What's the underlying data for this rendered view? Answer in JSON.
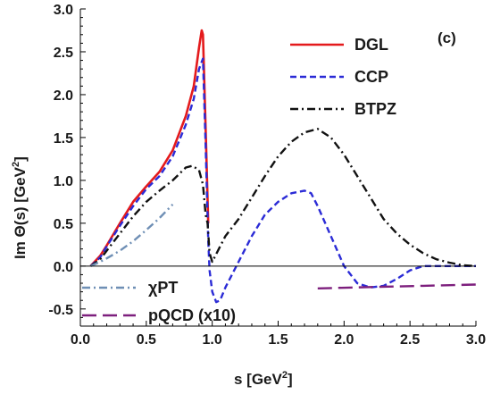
{
  "chart_data": {
    "type": "line",
    "panel_label": "(c)",
    "xlabel": "s  [GeV",
    "xlabel_sup": "2",
    "xlabel_end": "]",
    "ylabel": "Im Θ(s)   [GeV",
    "ylabel_sup": "2",
    "ylabel_end": "]",
    "xlim": [
      0.0,
      3.0
    ],
    "ylim": [
      -0.7,
      3.0
    ],
    "xticks": [
      0.0,
      0.5,
      1.0,
      1.5,
      2.0,
      2.5,
      3.0
    ],
    "xtick_labels": [
      "0.0",
      "0.5",
      "1.0",
      "1.5",
      "2.0",
      "2.5",
      "3.0"
    ],
    "yticks": [
      -0.5,
      0.0,
      0.5,
      1.0,
      1.5,
      2.0,
      2.5,
      3.0
    ],
    "ytick_labels": [
      "-0.5",
      "0.0",
      "0.5",
      "1.0",
      "1.5",
      "2.0",
      "2.5",
      "3.0"
    ],
    "zero_line": true,
    "series": [
      {
        "name": "DGL",
        "color": "#e41a1c",
        "dash": "solid",
        "x": [
          0.078,
          0.15,
          0.2,
          0.3,
          0.4,
          0.5,
          0.6,
          0.7,
          0.8,
          0.86,
          0.9,
          0.92,
          0.93,
          0.95,
          0.97
        ],
        "y": [
          0.0,
          0.12,
          0.24,
          0.5,
          0.75,
          0.93,
          1.1,
          1.35,
          1.75,
          2.1,
          2.55,
          2.75,
          2.7,
          1.6,
          0.5
        ]
      },
      {
        "name": "CCP",
        "color": "#2b2bd6",
        "dash": "dashed",
        "x": [
          0.078,
          0.15,
          0.2,
          0.3,
          0.4,
          0.5,
          0.6,
          0.7,
          0.8,
          0.86,
          0.9,
          0.93,
          0.95,
          0.97,
          0.98,
          1.0,
          1.03,
          1.06,
          1.1,
          1.2,
          1.3,
          1.4,
          1.5,
          1.6,
          1.7,
          1.75,
          1.8,
          1.9,
          2.0,
          2.1,
          2.2,
          2.3,
          2.4,
          2.5,
          2.6,
          2.7,
          2.8,
          2.9,
          3.0
        ],
        "y": [
          0.0,
          0.1,
          0.23,
          0.47,
          0.7,
          0.9,
          1.05,
          1.28,
          1.65,
          1.95,
          2.3,
          2.42,
          1.4,
          0.3,
          -0.05,
          -0.3,
          -0.42,
          -0.4,
          -0.25,
          0.05,
          0.35,
          0.6,
          0.75,
          0.85,
          0.88,
          0.85,
          0.7,
          0.35,
          0.0,
          -0.2,
          -0.25,
          -0.23,
          -0.15,
          -0.05,
          0.0,
          0.0,
          0.0,
          0.0,
          0.0
        ]
      },
      {
        "name": "BTPZ",
        "color": "#111111",
        "dash": "dashdot",
        "x": [
          0.078,
          0.15,
          0.2,
          0.3,
          0.4,
          0.5,
          0.6,
          0.7,
          0.8,
          0.85,
          0.9,
          0.93,
          0.95,
          0.965,
          0.98,
          1.0,
          1.05,
          1.1,
          1.2,
          1.3,
          1.4,
          1.5,
          1.6,
          1.7,
          1.8,
          1.9,
          2.0,
          2.1,
          2.2,
          2.3,
          2.4,
          2.5,
          2.6,
          2.7,
          2.8,
          2.9,
          3.0
        ],
        "y": [
          0.0,
          0.08,
          0.18,
          0.38,
          0.58,
          0.75,
          0.88,
          1.0,
          1.15,
          1.17,
          1.12,
          0.95,
          0.6,
          0.5,
          0.15,
          0.05,
          0.2,
          0.35,
          0.55,
          0.8,
          1.05,
          1.28,
          1.45,
          1.56,
          1.6,
          1.5,
          1.3,
          1.05,
          0.8,
          0.55,
          0.38,
          0.25,
          0.15,
          0.08,
          0.04,
          0.01,
          0.0
        ]
      },
      {
        "name": "χPT",
        "color": "#6f8fb5",
        "dash": "dashdot",
        "x": [
          0.078,
          0.15,
          0.2,
          0.3,
          0.4,
          0.5,
          0.6,
          0.7
        ],
        "y": [
          0.0,
          0.05,
          0.09,
          0.18,
          0.29,
          0.42,
          0.56,
          0.72
        ]
      },
      {
        "name": "pQCD (x10)",
        "color": "#7d1f7d",
        "dash": "longdash",
        "x": [
          1.8,
          2.2,
          2.6,
          3.0
        ],
        "y": [
          -0.26,
          -0.245,
          -0.23,
          -0.215
        ]
      }
    ],
    "legend": {
      "placement": "top-right",
      "entries": [
        "DGL",
        "CCP",
        "BTPZ"
      ]
    },
    "legend_lower": {
      "placement": "bottom-left",
      "entries": [
        "χPT",
        "pQCD (x10)"
      ]
    }
  }
}
